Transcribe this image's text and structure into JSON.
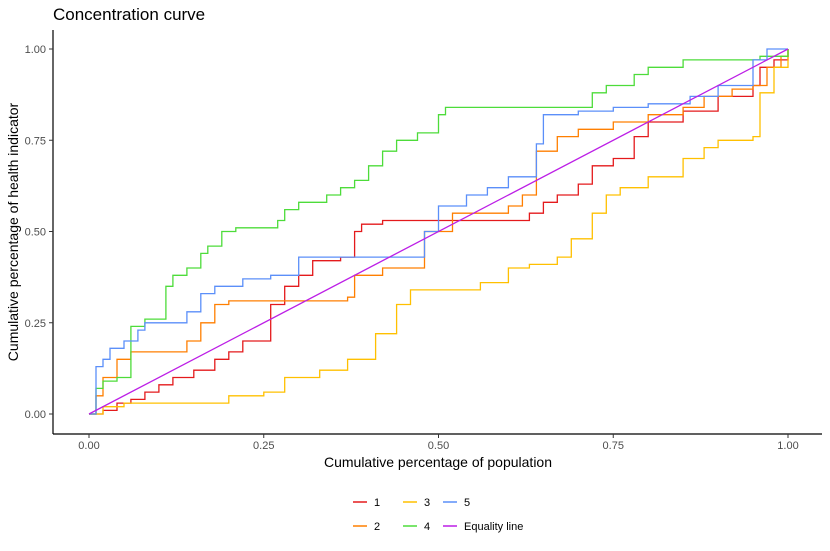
{
  "chart_data": {
    "type": "line",
    "title": "Concentration curve",
    "xlabel": "Cumulative percentage of population",
    "ylabel": "Cumulative percentage of health indicator",
    "xlim": [
      0,
      1
    ],
    "ylim": [
      0,
      1
    ],
    "x_ticks": [
      "0.00",
      "0.25",
      "0.50",
      "0.75",
      "1.00"
    ],
    "y_ticks": [
      "0.00",
      "0.25",
      "0.50",
      "0.75",
      "1.00"
    ],
    "grid": false,
    "legend_position": "bottom",
    "series": [
      {
        "name": "1",
        "color": "#e41a1c",
        "points": [
          [
            0,
            0
          ],
          [
            0.02,
            0.01
          ],
          [
            0.04,
            0.03
          ],
          [
            0.06,
            0.04
          ],
          [
            0.08,
            0.06
          ],
          [
            0.1,
            0.08
          ],
          [
            0.12,
            0.1
          ],
          [
            0.15,
            0.12
          ],
          [
            0.18,
            0.15
          ],
          [
            0.2,
            0.17
          ],
          [
            0.22,
            0.2
          ],
          [
            0.26,
            0.22
          ],
          [
            0.26,
            0.3
          ],
          [
            0.28,
            0.35
          ],
          [
            0.3,
            0.38
          ],
          [
            0.32,
            0.42
          ],
          [
            0.36,
            0.43
          ],
          [
            0.38,
            0.5
          ],
          [
            0.39,
            0.52
          ],
          [
            0.42,
            0.53
          ],
          [
            0.5,
            0.53
          ],
          [
            0.55,
            0.53
          ],
          [
            0.6,
            0.53
          ],
          [
            0.63,
            0.55
          ],
          [
            0.65,
            0.58
          ],
          [
            0.67,
            0.6
          ],
          [
            0.7,
            0.63
          ],
          [
            0.72,
            0.68
          ],
          [
            0.75,
            0.7
          ],
          [
            0.78,
            0.76
          ],
          [
            0.8,
            0.8
          ],
          [
            0.85,
            0.83
          ],
          [
            0.9,
            0.87
          ],
          [
            0.95,
            0.9
          ],
          [
            0.96,
            0.95
          ],
          [
            0.98,
            0.97
          ],
          [
            1,
            1
          ]
        ]
      },
      {
        "name": "2",
        "color": "#ff7f00",
        "points": [
          [
            0,
            0
          ],
          [
            0.01,
            0.05
          ],
          [
            0.02,
            0.1
          ],
          [
            0.04,
            0.15
          ],
          [
            0.06,
            0.17
          ],
          [
            0.1,
            0.17
          ],
          [
            0.14,
            0.2
          ],
          [
            0.16,
            0.25
          ],
          [
            0.18,
            0.3
          ],
          [
            0.2,
            0.31
          ],
          [
            0.25,
            0.31
          ],
          [
            0.3,
            0.31
          ],
          [
            0.37,
            0.32
          ],
          [
            0.38,
            0.38
          ],
          [
            0.42,
            0.4
          ],
          [
            0.48,
            0.5
          ],
          [
            0.52,
            0.55
          ],
          [
            0.6,
            0.57
          ],
          [
            0.62,
            0.6
          ],
          [
            0.64,
            0.72
          ],
          [
            0.67,
            0.76
          ],
          [
            0.7,
            0.78
          ],
          [
            0.75,
            0.8
          ],
          [
            0.8,
            0.82
          ],
          [
            0.85,
            0.84
          ],
          [
            0.88,
            0.87
          ],
          [
            0.92,
            0.89
          ],
          [
            0.95,
            0.9
          ],
          [
            0.97,
            0.95
          ],
          [
            0.99,
            0.98
          ],
          [
            1,
            1
          ]
        ]
      },
      {
        "name": "3",
        "color": "#ffc000",
        "points": [
          [
            0,
            0
          ],
          [
            0.02,
            0.02
          ],
          [
            0.05,
            0.03
          ],
          [
            0.1,
            0.03
          ],
          [
            0.15,
            0.03
          ],
          [
            0.2,
            0.05
          ],
          [
            0.25,
            0.06
          ],
          [
            0.28,
            0.1
          ],
          [
            0.33,
            0.12
          ],
          [
            0.37,
            0.15
          ],
          [
            0.41,
            0.22
          ],
          [
            0.44,
            0.3
          ],
          [
            0.46,
            0.34
          ],
          [
            0.5,
            0.34
          ],
          [
            0.56,
            0.36
          ],
          [
            0.6,
            0.4
          ],
          [
            0.63,
            0.41
          ],
          [
            0.67,
            0.43
          ],
          [
            0.69,
            0.48
          ],
          [
            0.72,
            0.55
          ],
          [
            0.74,
            0.6
          ],
          [
            0.76,
            0.62
          ],
          [
            0.8,
            0.65
          ],
          [
            0.85,
            0.7
          ],
          [
            0.88,
            0.73
          ],
          [
            0.9,
            0.75
          ],
          [
            0.95,
            0.76
          ],
          [
            0.96,
            0.88
          ],
          [
            0.98,
            0.95
          ],
          [
            1,
            1
          ]
        ]
      },
      {
        "name": "4",
        "color": "#4ddc3a",
        "points": [
          [
            0,
            0
          ],
          [
            0.01,
            0.07
          ],
          [
            0.02,
            0.09
          ],
          [
            0.04,
            0.1
          ],
          [
            0.06,
            0.24
          ],
          [
            0.08,
            0.26
          ],
          [
            0.11,
            0.35
          ],
          [
            0.12,
            0.38
          ],
          [
            0.14,
            0.4
          ],
          [
            0.16,
            0.44
          ],
          [
            0.17,
            0.46
          ],
          [
            0.19,
            0.5
          ],
          [
            0.21,
            0.51
          ],
          [
            0.25,
            0.51
          ],
          [
            0.27,
            0.53
          ],
          [
            0.28,
            0.56
          ],
          [
            0.3,
            0.58
          ],
          [
            0.34,
            0.6
          ],
          [
            0.36,
            0.62
          ],
          [
            0.38,
            0.64
          ],
          [
            0.4,
            0.68
          ],
          [
            0.42,
            0.72
          ],
          [
            0.44,
            0.75
          ],
          [
            0.47,
            0.77
          ],
          [
            0.5,
            0.82
          ],
          [
            0.51,
            0.84
          ],
          [
            0.6,
            0.84
          ],
          [
            0.64,
            0.84
          ],
          [
            0.7,
            0.84
          ],
          [
            0.72,
            0.88
          ],
          [
            0.74,
            0.9
          ],
          [
            0.78,
            0.93
          ],
          [
            0.8,
            0.95
          ],
          [
            0.85,
            0.97
          ],
          [
            0.92,
            0.97
          ],
          [
            0.96,
            0.98
          ],
          [
            1,
            1
          ]
        ]
      },
      {
        "name": "5",
        "color": "#5b8ff9",
        "points": [
          [
            0,
            0
          ],
          [
            0.01,
            0.13
          ],
          [
            0.02,
            0.15
          ],
          [
            0.03,
            0.18
          ],
          [
            0.05,
            0.2
          ],
          [
            0.07,
            0.23
          ],
          [
            0.08,
            0.25
          ],
          [
            0.14,
            0.28
          ],
          [
            0.16,
            0.33
          ],
          [
            0.18,
            0.35
          ],
          [
            0.22,
            0.37
          ],
          [
            0.26,
            0.38
          ],
          [
            0.3,
            0.43
          ],
          [
            0.35,
            0.43
          ],
          [
            0.42,
            0.43
          ],
          [
            0.46,
            0.43
          ],
          [
            0.48,
            0.5
          ],
          [
            0.5,
            0.57
          ],
          [
            0.54,
            0.6
          ],
          [
            0.57,
            0.62
          ],
          [
            0.6,
            0.65
          ],
          [
            0.64,
            0.74
          ],
          [
            0.65,
            0.82
          ],
          [
            0.7,
            0.83
          ],
          [
            0.75,
            0.84
          ],
          [
            0.8,
            0.85
          ],
          [
            0.86,
            0.87
          ],
          [
            0.9,
            0.9
          ],
          [
            0.95,
            0.97
          ],
          [
            0.97,
            1
          ],
          [
            1,
            1
          ]
        ]
      },
      {
        "name": "Equality line",
        "color": "#bc1ee6",
        "points": [
          [
            0,
            0
          ],
          [
            1,
            1
          ]
        ]
      }
    ]
  }
}
